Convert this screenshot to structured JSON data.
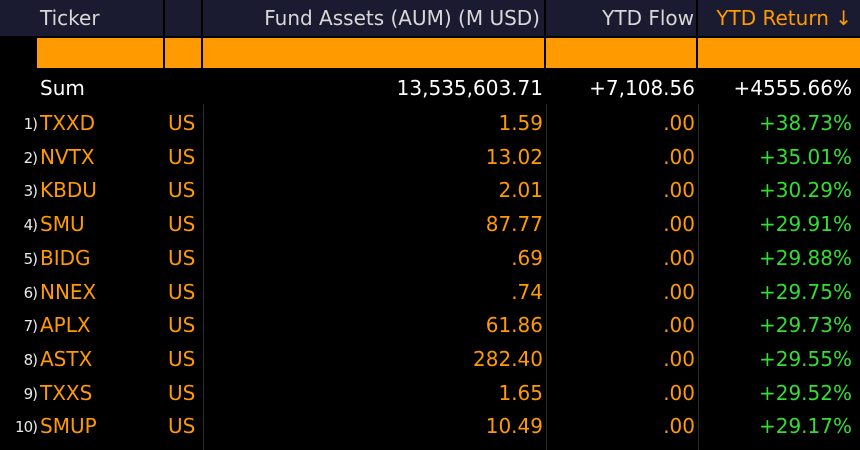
{
  "header": {
    "columns": [
      "Ticker",
      "Fund Assets (AUM) (M USD)",
      "YTD Flow",
      "YTD Return ↓"
    ]
  },
  "sum": {
    "label": "Sum",
    "aum": "13,535,603.71",
    "flow": "+7,108.56",
    "ret": "+4555.66%"
  },
  "rows": [
    {
      "index": "1)",
      "ticker": "TXXD",
      "country": "US",
      "aum": "1.59",
      "flow": ".00",
      "ret": "+38.73%"
    },
    {
      "index": "2)",
      "ticker": "NVTX",
      "country": "US",
      "aum": "13.02",
      "flow": ".00",
      "ret": "+35.01%"
    },
    {
      "index": "3)",
      "ticker": "KBDU",
      "country": "US",
      "aum": "2.01",
      "flow": ".00",
      "ret": "+30.29%"
    },
    {
      "index": "4)",
      "ticker": "SMU",
      "country": "US",
      "aum": "87.77",
      "flow": ".00",
      "ret": "+29.91%"
    },
    {
      "index": "5)",
      "ticker": "BIDG",
      "country": "US",
      "aum": ".69",
      "flow": ".00",
      "ret": "+29.88%"
    },
    {
      "index": "6)",
      "ticker": "NNEX",
      "country": "US",
      "aum": ".74",
      "flow": ".00",
      "ret": "+29.75%"
    },
    {
      "index": "7)",
      "ticker": "APLX",
      "country": "US",
      "aum": "61.86",
      "flow": ".00",
      "ret": "+29.73%"
    },
    {
      "index": "8)",
      "ticker": "ASTX",
      "country": "US",
      "aum": "282.40",
      "flow": ".00",
      "ret": "+29.55%"
    },
    {
      "index": "9)",
      "ticker": "TXXS",
      "country": "US",
      "aum": "1.65",
      "flow": ".00",
      "ret": "+29.52%"
    },
    {
      "index": "10)",
      "ticker": "SMUP",
      "country": "US",
      "aum": "10.49",
      "flow": ".00",
      "ret": "+29.17%"
    }
  ]
}
